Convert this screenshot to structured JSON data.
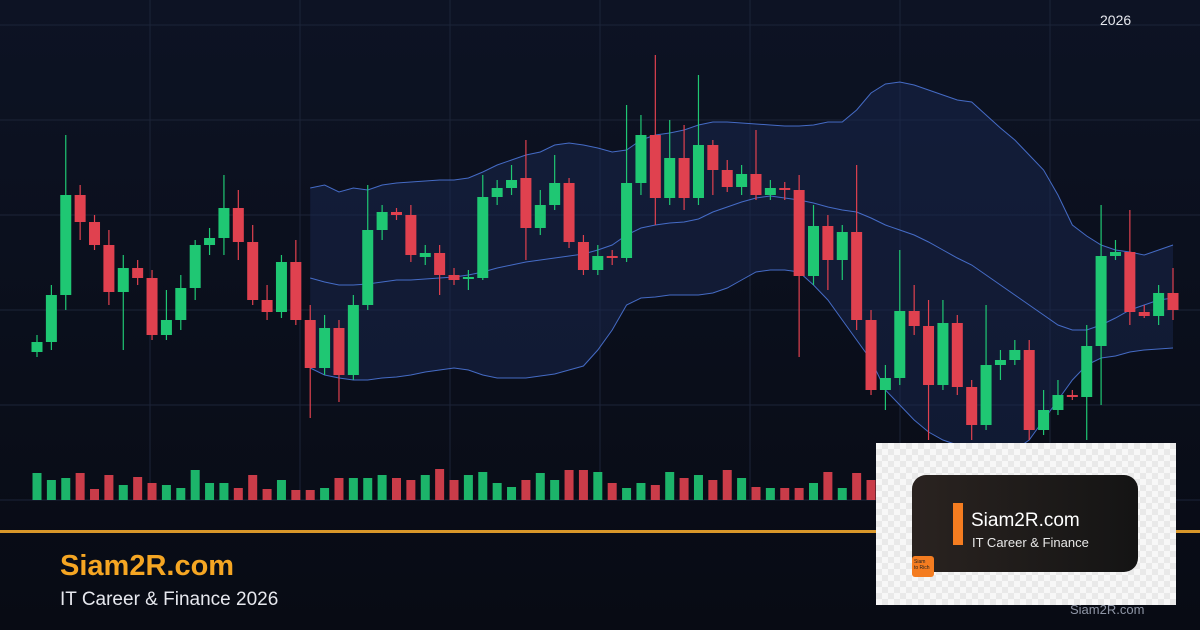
{
  "header": {
    "year": "2026"
  },
  "brand": {
    "title": "Siam2R.com",
    "subtitle": "IT Career & Finance 2026"
  },
  "logo": {
    "name": "Siam2R.com",
    "tagline": "IT Career & Finance",
    "icon": [
      "Siam",
      "to Rich"
    ]
  },
  "watermark": "Siam2R.com",
  "chart_data": {
    "type": "candlestick",
    "up_color": "#1fc773",
    "down_color": "#e0414f",
    "band_color": "#4f7ae0",
    "grid": true,
    "open": [
      148,
      158,
      205,
      305,
      278,
      255,
      208,
      232,
      222,
      165,
      180,
      212,
      255,
      262,
      292,
      258,
      200,
      188,
      238,
      180,
      132,
      172,
      125,
      195,
      270,
      288,
      285,
      243,
      247,
      225,
      221,
      222,
      303,
      312,
      322,
      272,
      295,
      317,
      258,
      230,
      244,
      242,
      317,
      365,
      302,
      342,
      302,
      355,
      330,
      313,
      326,
      305,
      312,
      310,
      224,
      274,
      240,
      268,
      180,
      110,
      122,
      189,
      174,
      115,
      177,
      113,
      75,
      135,
      140,
      150,
      70,
      90,
      105,
      103,
      154,
      244,
      248,
      188,
      184,
      207
    ],
    "high": [
      165,
      215,
      365,
      315,
      285,
      270,
      245,
      240,
      230,
      210,
      225,
      260,
      272,
      325,
      310,
      275,
      215,
      245,
      260,
      195,
      185,
      180,
      205,
      315,
      295,
      292,
      295,
      255,
      255,
      232,
      230,
      325,
      320,
      335,
      360,
      310,
      345,
      322,
      265,
      255,
      250,
      395,
      385,
      445,
      380,
      375,
      425,
      360,
      340,
      335,
      370,
      320,
      318,
      325,
      295,
      285,
      275,
      335,
      190,
      135,
      250,
      215,
      200,
      200,
      185,
      120,
      195,
      150,
      160,
      160,
      110,
      120,
      110,
      175,
      295,
      260,
      290,
      195,
      215,
      232
    ],
    "low": [
      143,
      150,
      190,
      260,
      250,
      195,
      150,
      215,
      160,
      160,
      170,
      200,
      245,
      245,
      240,
      195,
      180,
      182,
      175,
      82,
      125,
      98,
      120,
      190,
      260,
      280,
      238,
      235,
      205,
      215,
      210,
      220,
      295,
      305,
      240,
      265,
      290,
      252,
      225,
      225,
      235,
      238,
      305,
      275,
      295,
      290,
      295,
      305,
      308,
      305,
      300,
      300,
      300,
      143,
      215,
      210,
      220,
      170,
      105,
      90,
      115,
      165,
      60,
      110,
      105,
      60,
      70,
      120,
      135,
      60,
      65,
      85,
      100,
      60,
      95,
      240,
      175,
      182,
      175,
      180
    ],
    "close": [
      158,
      205,
      305,
      278,
      255,
      208,
      232,
      222,
      165,
      180,
      212,
      255,
      262,
      292,
      258,
      200,
      188,
      238,
      180,
      132,
      172,
      125,
      195,
      270,
      288,
      285,
      245,
      247,
      225,
      220,
      223,
      303,
      312,
      320,
      272,
      295,
      317,
      258,
      230,
      244,
      242,
      317,
      365,
      302,
      342,
      302,
      355,
      330,
      313,
      326,
      305,
      312,
      310,
      224,
      274,
      240,
      268,
      180,
      110,
      122,
      189,
      174,
      115,
      177,
      113,
      75,
      135,
      140,
      150,
      70,
      90,
      105,
      103,
      154,
      244,
      248,
      188,
      184,
      207,
      190
    ],
    "volume": [
      27,
      20,
      22,
      27,
      11,
      25,
      15,
      23,
      17,
      15,
      12,
      30,
      17,
      17,
      12,
      25,
      11,
      20,
      10,
      10,
      12,
      22,
      22,
      22,
      25,
      22,
      20,
      25,
      31,
      20,
      25,
      28,
      17,
      13,
      20,
      27,
      20,
      30,
      30,
      28,
      17,
      12,
      17,
      15,
      28,
      22,
      25,
      20,
      30,
      22,
      13,
      12,
      12,
      12,
      17,
      28,
      12,
      27,
      20,
      null,
      null,
      null,
      null,
      null,
      null,
      null,
      null,
      null,
      null,
      null,
      null,
      null,
      null,
      null,
      null,
      null,
      null,
      null,
      null,
      null
    ],
    "bands": {
      "upper": [
        null,
        null,
        null,
        null,
        null,
        null,
        null,
        null,
        null,
        null,
        null,
        null,
        null,
        null,
        null,
        null,
        null,
        null,
        null,
        312,
        315,
        308,
        312,
        310,
        315,
        317,
        318,
        319,
        320,
        320,
        322,
        328,
        335,
        340,
        345,
        348,
        355,
        357,
        355,
        352,
        348,
        350,
        360,
        365,
        367,
        370,
        375,
        378,
        378,
        377,
        376,
        375,
        374,
        374,
        375,
        378,
        378,
        390,
        407,
        416,
        418,
        415,
        410,
        405,
        400,
        398,
        385,
        372,
        360,
        345,
        330,
        305,
        275,
        264,
        255,
        250,
        248,
        245,
        250,
        255
      ],
      "middle": [
        null,
        null,
        null,
        null,
        null,
        null,
        null,
        null,
        null,
        null,
        null,
        null,
        null,
        null,
        null,
        null,
        null,
        null,
        null,
        222,
        218,
        215,
        215,
        216,
        218,
        220,
        220,
        221,
        222,
        223,
        225,
        228,
        232,
        235,
        238,
        240,
        242,
        244,
        246,
        250,
        255,
        265,
        272,
        275,
        277,
        278,
        281,
        288,
        293,
        298,
        302,
        304,
        302,
        300,
        297,
        293,
        290,
        288,
        282,
        275,
        270,
        265,
        258,
        250,
        242,
        235,
        225,
        215,
        205,
        195,
        185,
        175,
        170,
        170,
        175,
        182,
        190,
        195,
        200,
        202
      ],
      "lower": [
        null,
        null,
        null,
        null,
        null,
        null,
        null,
        null,
        null,
        null,
        null,
        null,
        null,
        null,
        null,
        null,
        null,
        null,
        null,
        132,
        125,
        122,
        120,
        120,
        122,
        123,
        125,
        128,
        130,
        132,
        130,
        125,
        122,
        122,
        122,
        124,
        126,
        130,
        134,
        150,
        170,
        195,
        202,
        203,
        205,
        205,
        205,
        207,
        212,
        220,
        228,
        230,
        230,
        228,
        215,
        200,
        180,
        160,
        140,
        110,
        95,
        80,
        68,
        60,
        55,
        50,
        45,
        45,
        50,
        60,
        80,
        100,
        120,
        135,
        142,
        144,
        148,
        150,
        151,
        152
      ]
    }
  }
}
